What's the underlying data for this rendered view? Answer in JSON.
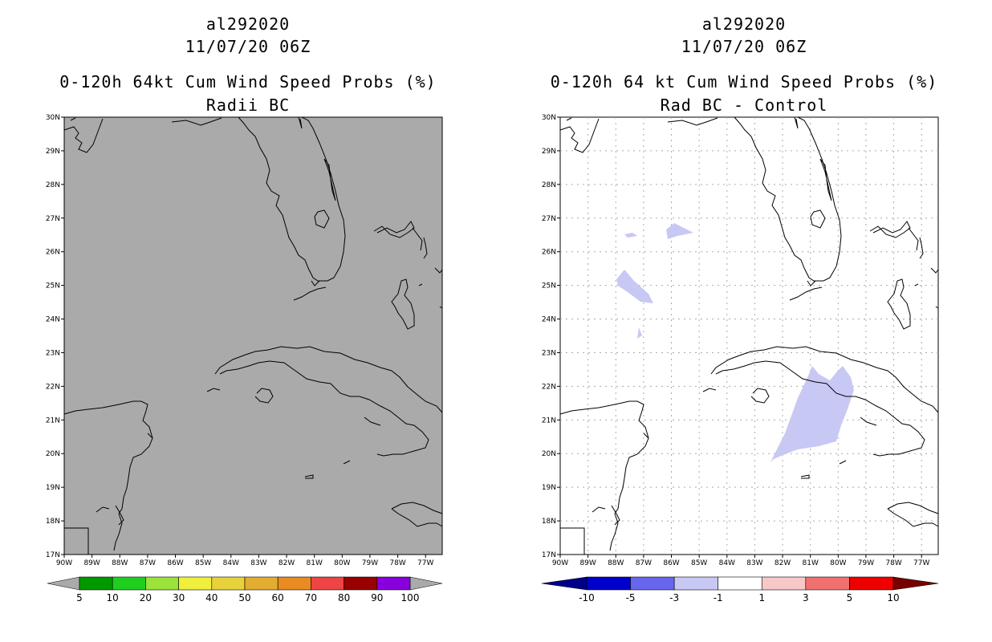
{
  "left_panel": {
    "title_line1": "al292020",
    "title_line2": "11/07/20 06Z",
    "title_line3": "0-120h 64kt Cum Wind Speed Probs (%)",
    "title_line4": "Radii BC",
    "colorbar": {
      "colors": [
        "#009900",
        "#1fcf1f",
        "#9be23b",
        "#f0f03c",
        "#e8d23c",
        "#e3ad32",
        "#e98b22",
        "#ee4444",
        "#990000",
        "#8800dd"
      ],
      "end_color": "#aaaaaa",
      "labels": [
        "5",
        "10",
        "20",
        "30",
        "40",
        "50",
        "60",
        "70",
        "80",
        "90",
        "100"
      ]
    },
    "background_color": "#aaaaaa"
  },
  "right_panel": {
    "title_line1": "al292020",
    "title_line2": "11/07/20 06Z",
    "title_line3": "0-120h 64 kt Cum Wind Speed Probs (%)",
    "title_line4": "Rad BC - Control",
    "colorbar": {
      "colors": [
        "#0000cc",
        "#6666ee",
        "#c8c8f5",
        "#ffffff",
        "#f8c8c8",
        "#f07070",
        "#ee0000"
      ],
      "low_color": "#000088",
      "high_color": "#770000",
      "labels": [
        "-10",
        "-5",
        "-3",
        "-1",
        "1",
        "3",
        "5",
        "10"
      ]
    },
    "shade_color": "#c8c8f5"
  },
  "axes": {
    "lat_labels": [
      "17N",
      "18N",
      "19N",
      "20N",
      "21N",
      "22N",
      "23N",
      "24N",
      "25N",
      "26N",
      "27N",
      "28N",
      "29N",
      "30N"
    ],
    "lon_labels": [
      "90W",
      "89W",
      "88W",
      "87W",
      "86W",
      "85W",
      "84W",
      "83W",
      "82W",
      "81W",
      "80W",
      "79W",
      "78W",
      "77W"
    ]
  }
}
